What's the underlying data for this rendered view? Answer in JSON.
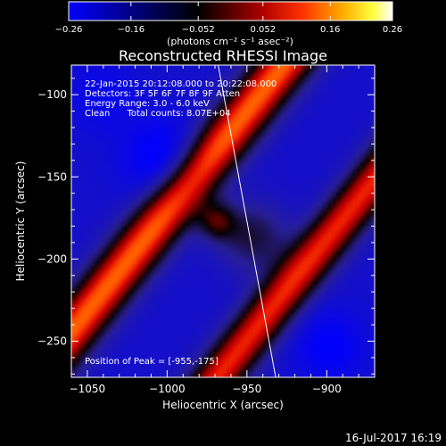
{
  "chart_data": {
    "type": "heatmap",
    "title": "Reconstructed RHESSI Image",
    "xlabel": "Heliocentric X (arcsec)",
    "ylabel": "Heliocentric Y (arcsec)",
    "xlim": [
      -1060,
      -870
    ],
    "ylim": [
      -272,
      -82
    ],
    "x_ticks": [
      -1050,
      -1000,
      -950,
      -900
    ],
    "y_ticks": [
      -250,
      -200,
      -150,
      -100
    ],
    "colorbar": {
      "range": [
        -0.26,
        0.26
      ],
      "ticks": [
        -0.26,
        -0.16,
        -0.052,
        0.052,
        0.16,
        0.26
      ],
      "tick_labels": [
        "-0.26",
        "-0.16",
        "-0.052",
        "0.052",
        "0.16",
        "0.26"
      ],
      "label": "(photons cm⁻² s⁻¹ asec⁻²)"
    },
    "annotations": [
      "22-Jan-2015 20:12:08.000 to 20:22:08.000",
      "Detectors: 3F 5F 6F 7F 8F 9F Atten",
      "Energy Range: 3.0 - 6.0 keV",
      "Clean      Total counts: 8.07E+04"
    ],
    "peak_label": "Position of Peak = [-955,-175]",
    "peak": {
      "x": -955,
      "y": -175
    },
    "limb_line": [
      [
        -968,
        -82
      ],
      [
        -932,
        -272
      ]
    ]
  },
  "footer": {
    "timestamp": "16-Jul-2017 16:19"
  },
  "colors": {
    "background": "#000000",
    "foreground": "#ffffff"
  }
}
